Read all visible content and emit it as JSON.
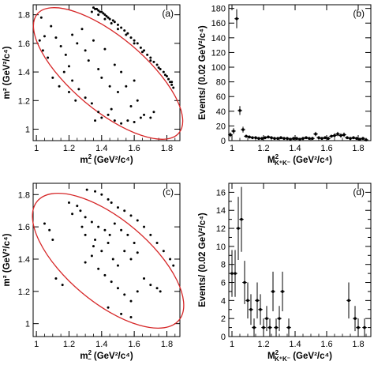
{
  "chart_data": [
    {
      "type": "scatter",
      "panel_label": "(a)",
      "xlabel_prefix": "m",
      "xlabel_sup": "2",
      "xlabel_sub": "−",
      "xlabel_unit": " (GeV²/c⁴)",
      "ylabel": "m² (GeV²/c⁴)",
      "xlim": [
        0.98,
        1.88
      ],
      "ylim": [
        0.92,
        1.87
      ],
      "xticks": [
        1,
        1.2,
        1.4,
        1.6,
        1.8
      ],
      "yticks": [
        1,
        1.2,
        1.4,
        1.6,
        1.8
      ],
      "boundary": {
        "shape": "ellipse",
        "color": "#d62728"
      },
      "points": [
        [
          1.35,
          1.85
        ],
        [
          1.36,
          1.84
        ],
        [
          1.37,
          1.84
        ],
        [
          1.38,
          1.83
        ],
        [
          1.39,
          1.82
        ],
        [
          1.4,
          1.82
        ],
        [
          1.41,
          1.81
        ],
        [
          1.42,
          1.8
        ],
        [
          1.43,
          1.79
        ],
        [
          1.44,
          1.78
        ],
        [
          1.45,
          1.77
        ],
        [
          1.47,
          1.76
        ],
        [
          1.48,
          1.75
        ],
        [
          1.5,
          1.73
        ],
        [
          1.52,
          1.71
        ],
        [
          1.54,
          1.69
        ],
        [
          1.56,
          1.67
        ],
        [
          1.58,
          1.64
        ],
        [
          1.6,
          1.62
        ],
        [
          1.62,
          1.6
        ],
        [
          1.64,
          1.57
        ],
        [
          1.66,
          1.55
        ],
        [
          1.68,
          1.52
        ],
        [
          1.7,
          1.5
        ],
        [
          1.72,
          1.47
        ],
        [
          1.74,
          1.45
        ],
        [
          1.76,
          1.42
        ],
        [
          1.78,
          1.4
        ],
        [
          1.8,
          1.37
        ],
        [
          1.81,
          1.35
        ],
        [
          1.82,
          1.33
        ],
        [
          1.83,
          1.31
        ],
        [
          1.84,
          1.29
        ],
        [
          1.34,
          1.82
        ],
        [
          1.38,
          1.8
        ],
        [
          1.42,
          1.77
        ],
        [
          1.46,
          1.74
        ],
        [
          1.5,
          1.7
        ],
        [
          1.55,
          1.66
        ],
        [
          1.6,
          1.6
        ],
        [
          1.65,
          1.54
        ],
        [
          1.7,
          1.48
        ],
        [
          1.75,
          1.43
        ],
        [
          1.79,
          1.38
        ],
        [
          1.83,
          1.33
        ],
        [
          1.03,
          1.78
        ],
        [
          1.05,
          1.65
        ],
        [
          1.02,
          1.62
        ],
        [
          1.04,
          1.55
        ],
        [
          1.07,
          1.5
        ],
        [
          1.09,
          1.72
        ],
        [
          1.12,
          1.64
        ],
        [
          1.15,
          1.58
        ],
        [
          1.18,
          1.52
        ],
        [
          1.2,
          1.44
        ],
        [
          1.22,
          1.66
        ],
        [
          1.25,
          1.6
        ],
        [
          1.28,
          1.7
        ],
        [
          1.3,
          1.55
        ],
        [
          1.32,
          1.48
        ],
        [
          1.35,
          1.62
        ],
        [
          1.38,
          1.42
        ],
        [
          1.4,
          1.36
        ],
        [
          1.42,
          1.56
        ],
        [
          1.45,
          1.3
        ],
        [
          1.48,
          1.45
        ],
        [
          1.5,
          1.26
        ],
        [
          1.52,
          1.4
        ],
        [
          1.1,
          1.36
        ],
        [
          1.14,
          1.3
        ],
        [
          1.17,
          1.4
        ],
        [
          1.22,
          1.34
        ],
        [
          1.26,
          1.28
        ],
        [
          1.3,
          1.22
        ],
        [
          1.34,
          1.18
        ],
        [
          1.38,
          1.12
        ],
        [
          1.4,
          1.08
        ],
        [
          1.44,
          1.1
        ],
        [
          1.48,
          1.06
        ],
        [
          1.52,
          1.04
        ],
        [
          1.56,
          1.06
        ],
        [
          1.6,
          1.05
        ],
        [
          1.64,
          1.08
        ],
        [
          1.66,
          1.1
        ],
        [
          1.7,
          1.08
        ],
        [
          1.72,
          1.12
        ],
        [
          1.62,
          1.2
        ],
        [
          1.58,
          1.16
        ],
        [
          1.46,
          1.14
        ],
        [
          1.36,
          1.06
        ],
        [
          1.2,
          1.26
        ],
        [
          1.24,
          1.2
        ],
        [
          1.55,
          1.3
        ],
        [
          1.6,
          1.34
        ]
      ]
    },
    {
      "type": "bar",
      "style": "points-with-errors",
      "panel_label": "(b)",
      "ylabel": "Events/ (0.02 GeV²/c⁴)",
      "xlabel_prefix": "M",
      "xlabel_sup": "2",
      "xlabel_sub": "K⁺K⁻",
      "xlabel_unit": " (GeV²/c⁴)",
      "xlim": [
        0.98,
        1.88
      ],
      "ylim": [
        0,
        185
      ],
      "xticks": [
        1,
        1.2,
        1.4,
        1.6,
        1.8
      ],
      "yticks": [
        0,
        20,
        40,
        60,
        80,
        100,
        120,
        140,
        160,
        180
      ],
      "points": [
        {
          "x": 0.99,
          "y": 8,
          "err": 3
        },
        {
          "x": 1.01,
          "y": 13,
          "err": 4
        },
        {
          "x": 1.03,
          "y": 166,
          "err": 13
        },
        {
          "x": 1.05,
          "y": 41,
          "err": 6
        },
        {
          "x": 1.07,
          "y": 15,
          "err": 4
        },
        {
          "x": 1.09,
          "y": 6,
          "err": 2
        },
        {
          "x": 1.11,
          "y": 5,
          "err": 2
        },
        {
          "x": 1.13,
          "y": 4,
          "err": 2
        },
        {
          "x": 1.15,
          "y": 4,
          "err": 2
        },
        {
          "x": 1.17,
          "y": 3,
          "err": 2
        },
        {
          "x": 1.19,
          "y": 3,
          "err": 2
        },
        {
          "x": 1.21,
          "y": 4,
          "err": 2
        },
        {
          "x": 1.23,
          "y": 5,
          "err": 2
        },
        {
          "x": 1.25,
          "y": 4,
          "err": 2
        },
        {
          "x": 1.27,
          "y": 3,
          "err": 2
        },
        {
          "x": 1.29,
          "y": 3,
          "err": 2
        },
        {
          "x": 1.31,
          "y": 4,
          "err": 2
        },
        {
          "x": 1.33,
          "y": 3,
          "err": 2
        },
        {
          "x": 1.35,
          "y": 3,
          "err": 2
        },
        {
          "x": 1.37,
          "y": 2,
          "err": 1
        },
        {
          "x": 1.39,
          "y": 3,
          "err": 2
        },
        {
          "x": 1.41,
          "y": 3,
          "err": 2
        },
        {
          "x": 1.43,
          "y": 2,
          "err": 1
        },
        {
          "x": 1.45,
          "y": 3,
          "err": 2
        },
        {
          "x": 1.47,
          "y": 4,
          "err": 2
        },
        {
          "x": 1.49,
          "y": 3,
          "err": 2
        },
        {
          "x": 1.51,
          "y": 3,
          "err": 2
        },
        {
          "x": 1.53,
          "y": 9,
          "err": 3
        },
        {
          "x": 1.55,
          "y": 4,
          "err": 2
        },
        {
          "x": 1.57,
          "y": 3,
          "err": 2
        },
        {
          "x": 1.59,
          "y": 4,
          "err": 2
        },
        {
          "x": 1.61,
          "y": 3,
          "err": 2
        },
        {
          "x": 1.63,
          "y": 6,
          "err": 2
        },
        {
          "x": 1.65,
          "y": 7,
          "err": 3
        },
        {
          "x": 1.67,
          "y": 9,
          "err": 3
        },
        {
          "x": 1.69,
          "y": 7,
          "err": 3
        },
        {
          "x": 1.71,
          "y": 8,
          "err": 3
        },
        {
          "x": 1.73,
          "y": 4,
          "err": 2
        },
        {
          "x": 1.75,
          "y": 3,
          "err": 2
        },
        {
          "x": 1.77,
          "y": 4,
          "err": 2
        },
        {
          "x": 1.79,
          "y": 3,
          "err": 2
        },
        {
          "x": 1.81,
          "y": 2,
          "err": 1
        },
        {
          "x": 1.83,
          "y": 3,
          "err": 2
        },
        {
          "x": 1.85,
          "y": 1,
          "err": 1
        }
      ]
    },
    {
      "type": "scatter",
      "panel_label": "(c)",
      "xlabel_prefix": "m",
      "xlabel_sup": "2",
      "xlabel_sub": "−",
      "xlabel_unit": " (GeV²/c⁴)",
      "ylabel": "m² (GeV²/c⁴)",
      "xlim": [
        0.98,
        1.88
      ],
      "ylim": [
        0.92,
        1.87
      ],
      "xticks": [
        1,
        1.2,
        1.4,
        1.6,
        1.8
      ],
      "yticks": [
        1,
        1.2,
        1.4,
        1.6,
        1.8
      ],
      "boundary": {
        "shape": "ellipse",
        "color": "#d62728"
      },
      "points": [
        [
          1.31,
          1.83
        ],
        [
          1.36,
          1.82
        ],
        [
          1.4,
          1.8
        ],
        [
          1.44,
          1.77
        ],
        [
          1.46,
          1.75
        ],
        [
          1.5,
          1.72
        ],
        [
          1.54,
          1.7
        ],
        [
          1.58,
          1.67
        ],
        [
          1.62,
          1.64
        ],
        [
          1.66,
          1.6
        ],
        [
          1.7,
          1.55
        ],
        [
          1.74,
          1.5
        ],
        [
          1.78,
          1.45
        ],
        [
          1.82,
          1.4
        ],
        [
          1.84,
          1.36
        ],
        [
          1.2,
          1.75
        ],
        [
          1.25,
          1.73
        ],
        [
          1.27,
          1.7
        ],
        [
          1.3,
          1.66
        ],
        [
          1.34,
          1.63
        ],
        [
          1.38,
          1.6
        ],
        [
          1.42,
          1.58
        ],
        [
          1.45,
          1.55
        ],
        [
          1.48,
          1.62
        ],
        [
          1.52,
          1.58
        ],
        [
          1.56,
          1.55
        ],
        [
          1.6,
          1.5
        ],
        [
          1.3,
          1.55
        ],
        [
          1.35,
          1.48
        ],
        [
          1.4,
          1.45
        ],
        [
          1.44,
          1.5
        ],
        [
          1.47,
          1.4
        ],
        [
          1.5,
          1.36
        ],
        [
          1.54,
          1.45
        ],
        [
          1.58,
          1.4
        ],
        [
          1.62,
          1.44
        ],
        [
          1.05,
          1.62
        ],
        [
          1.08,
          1.58
        ],
        [
          1.1,
          1.52
        ],
        [
          1.22,
          1.68
        ],
        [
          1.28,
          1.6
        ],
        [
          1.34,
          1.42
        ],
        [
          1.38,
          1.34
        ],
        [
          1.42,
          1.3
        ],
        [
          1.46,
          1.26
        ],
        [
          1.5,
          1.22
        ],
        [
          1.54,
          1.18
        ],
        [
          1.58,
          1.14
        ],
        [
          1.62,
          1.2
        ],
        [
          1.66,
          1.28
        ],
        [
          1.7,
          1.24
        ],
        [
          1.74,
          1.22
        ],
        [
          1.76,
          1.2
        ],
        [
          1.12,
          1.28
        ],
        [
          1.16,
          1.24
        ],
        [
          1.44,
          1.1
        ],
        [
          1.52,
          1.06
        ],
        [
          1.58,
          1.04
        ],
        [
          1.3,
          1.38
        ],
        [
          1.36,
          1.52
        ]
      ]
    },
    {
      "type": "bar",
      "style": "points-with-errors",
      "panel_label": "(d)",
      "ylabel": "Events/ (0.02 GeV²/c⁴)",
      "xlabel_prefix": "M",
      "xlabel_sup": "2",
      "xlabel_sub": "K⁺K⁻",
      "xlabel_unit": " (GeV²/c⁴)",
      "xlim": [
        0.98,
        1.88
      ],
      "ylim": [
        0,
        17
      ],
      "xticks": [
        1,
        1.2,
        1.4,
        1.6,
        1.8
      ],
      "yticks": [
        0,
        1,
        2,
        3,
        4,
        5,
        6,
        7,
        8,
        9,
        10,
        11,
        12,
        13,
        14,
        15,
        16,
        17
      ],
      "ytick_labels_shown": [
        0,
        2,
        4,
        6,
        8,
        10,
        12,
        14,
        16
      ],
      "points": [
        {
          "x": 1.0,
          "y": 7,
          "err": 2.6
        },
        {
          "x": 1.02,
          "y": 7,
          "err": 2.6
        },
        {
          "x": 1.04,
          "y": 12,
          "err": 3.5
        },
        {
          "x": 1.06,
          "y": 13,
          "err": 3.6
        },
        {
          "x": 1.08,
          "y": 6,
          "err": 2.4
        },
        {
          "x": 1.1,
          "y": 4,
          "err": 2
        },
        {
          "x": 1.12,
          "y": 3,
          "err": 1.7
        },
        {
          "x": 1.14,
          "y": 1,
          "err": 1
        },
        {
          "x": 1.16,
          "y": 4,
          "err": 2
        },
        {
          "x": 1.18,
          "y": 3,
          "err": 1.7
        },
        {
          "x": 1.2,
          "y": 1,
          "err": 1
        },
        {
          "x": 1.22,
          "y": 2,
          "err": 1.4
        },
        {
          "x": 1.24,
          "y": 1,
          "err": 1
        },
        {
          "x": 1.26,
          "y": 5,
          "err": 2.2
        },
        {
          "x": 1.28,
          "y": 1,
          "err": 1
        },
        {
          "x": 1.3,
          "y": 2,
          "err": 1.4
        },
        {
          "x": 1.32,
          "y": 5,
          "err": 2.2
        },
        {
          "x": 1.36,
          "y": 1,
          "err": 1
        },
        {
          "x": 1.74,
          "y": 4,
          "err": 2
        },
        {
          "x": 1.78,
          "y": 2,
          "err": 1.4
        },
        {
          "x": 1.8,
          "y": 1,
          "err": 1
        },
        {
          "x": 1.84,
          "y": 1,
          "err": 1
        }
      ]
    }
  ]
}
